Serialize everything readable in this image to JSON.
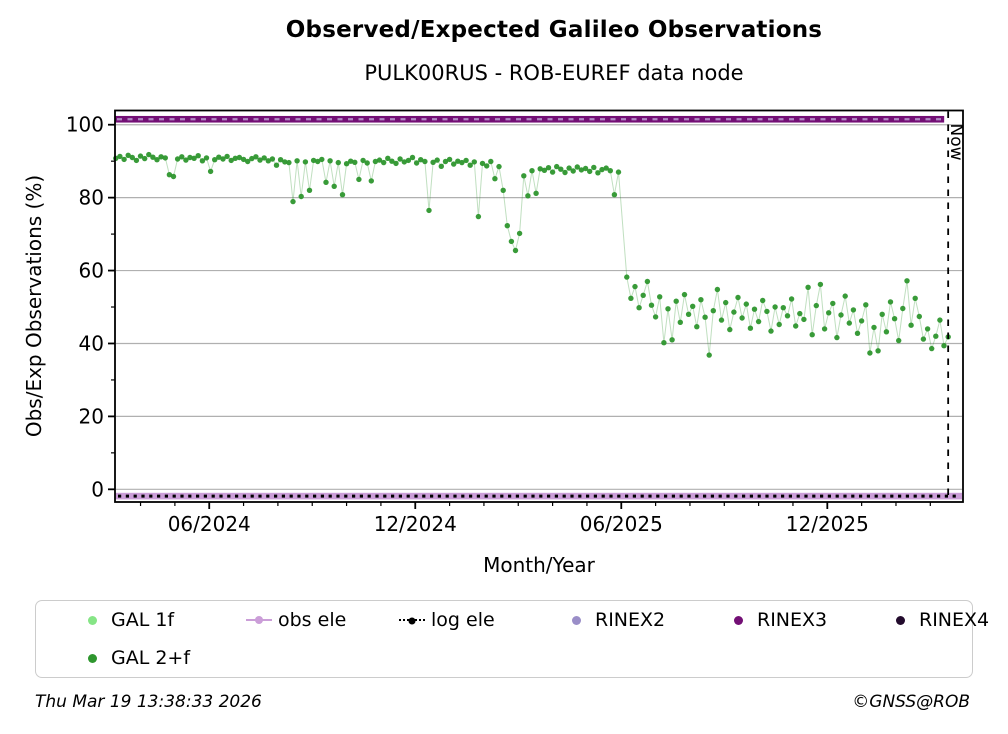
{
  "header": {
    "title": "Observed/Expected Galileo Observations",
    "subtitle": "PULK00RUS - ROB-EUREF data node"
  },
  "footer": {
    "timestamp": "Thu Mar 19 13:38:33 2026",
    "copyright": "©GNSS@ROB"
  },
  "chart_data": {
    "type": "scatter",
    "title": "Observed/Expected Galileo Observations",
    "subtitle": "PULK00RUS - ROB-EUREF data node",
    "xlabel": "Month/Year",
    "ylabel": "Obs/Exp Observations (%)",
    "now_label": "Now",
    "now_x": 2026.21,
    "xlim": [
      2024.188,
      2026.246
    ],
    "ylim": [
      -3.48,
      103.9
    ],
    "grid": "horizontal-gray",
    "legend_position": "below-axes",
    "x_major_ticks": [
      {
        "x": 2024.4167,
        "label": "06/2024"
      },
      {
        "x": 2024.9167,
        "label": "12/2024"
      },
      {
        "x": 2025.4167,
        "label": "06/2025"
      },
      {
        "x": 2025.9167,
        "label": "12/2025"
      }
    ],
    "x_minor_tick_step_months": 1,
    "y_major_ticks": [
      0,
      20,
      40,
      60,
      80,
      100
    ],
    "y_minor_ticks": [
      10,
      30,
      50,
      70,
      90
    ],
    "series": [
      {
        "name": "GAL 1f",
        "color": "#86e586",
        "type": "scatter",
        "visible_in_plot": false,
        "note": "markers not separately visible; hidden behind GAL 2+f / RINEX band"
      },
      {
        "name": "GAL 2+f",
        "color": "#2e962e",
        "line_color_alpha": 0.3,
        "type": "scatter+line",
        "x_unit": "decimal_year",
        "segments": [
          {
            "x_start": 2024.19,
            "x_step": 0.01,
            "values": [
              90.8,
              91.3,
              90.5,
              91.6,
              91.0,
              90.2,
              91.4,
              90.7,
              91.8,
              91.1,
              90.4,
              91.2,
              90.9,
              86.3,
              85.8,
              90.6,
              91.2,
              90.3,
              91.0,
              90.8,
              91.5,
              90.1,
              90.9,
              87.2,
              90.4,
              91.1,
              90.6,
              91.3,
              90.2,
              90.8,
              91.0,
              90.5,
              89.9,
              90.7,
              91.2,
              90.3,
              90.9,
              90.1,
              90.6,
              88.9,
              90.4,
              89.8,
              89.6,
              78.9,
              90.1,
              80.3,
              89.8,
              82.0,
              90.2,
              89.9,
              90.5,
              84.2,
              90.1,
              83.1,
              89.6,
              80.8,
              89.3,
              90.0,
              89.7,
              85.0,
              90.2,
              89.5,
              84.6,
              89.9,
              90.3,
              89.6,
              90.8,
              90.0,
              89.4,
              90.6,
              89.8,
              90.2,
              91.0,
              89.5,
              90.4,
              89.9,
              76.5,
              89.7,
              90.3,
              88.6,
              89.9,
              90.5,
              89.2,
              90.0,
              89.6,
              90.2,
              88.9,
              89.8,
              74.8,
              89.4,
              88.7,
              89.9,
              85.2,
              88.5,
              82.0,
              72.3,
              68.0,
              65.5,
              70.2,
              86.0,
              80.5,
              87.4,
              81.2,
              87.9,
              87.5,
              88.2,
              87.0,
              88.5,
              87.8,
              86.9,
              88.1,
              87.3,
              88.4,
              87.6,
              88.0,
              87.2,
              88.3,
              86.8,
              87.7,
              88.1,
              87.4,
              80.8,
              87.0
            ]
          },
          {
            "x_start": 2025.43,
            "x_step": 0.01,
            "values": [
              58.2,
              52.4,
              55.6,
              49.8,
              53.2,
              57.0,
              50.5,
              47.3,
              52.8,
              40.2,
              49.5,
              41.0,
              51.6,
              45.8,
              53.4,
              48.0,
              50.2,
              44.6,
              52.0,
              47.2,
              36.8,
              49.0,
              54.8,
              46.4,
              51.2,
              43.8,
              48.6,
              52.6,
              47.0,
              50.8,
              44.2,
              49.4,
              46.0,
              51.8,
              48.8,
              43.4,
              50.0,
              45.2,
              49.8,
              47.6,
              52.2,
              44.8,
              48.2,
              46.6,
              55.4,
              42.4,
              50.4,
              56.2,
              44.0,
              48.4,
              51.0,
              41.6,
              47.8,
              53.0,
              45.6,
              49.2,
              42.8,
              46.2,
              50.6,
              37.4,
              44.4,
              38.0,
              48.0,
              43.2,
              51.4,
              46.8,
              40.8,
              49.6,
              57.2,
              45.0,
              52.4,
              47.4,
              41.2,
              44.0,
              38.6,
              42.0,
              46.4,
              39.4,
              41.8
            ]
          }
        ]
      },
      {
        "name": "obs ele",
        "color": "#cb9ed8",
        "type": "thick-line",
        "value": 0,
        "x_range": [
          2024.188,
          2026.246
        ]
      },
      {
        "name": "log ele",
        "color": "#000000",
        "type": "dotted-line",
        "value": 0,
        "x_range": [
          2024.188,
          2026.246
        ]
      },
      {
        "name": "RINEX2",
        "color": "#b089c4",
        "legend_color": "#9a8ec8",
        "type": "dashed-line",
        "value": 101.5,
        "x_range": [
          2024.188,
          2026.21
        ]
      },
      {
        "name": "RINEX3",
        "color": "#730f75",
        "type": "band",
        "value": 101.5,
        "x_range": [
          2024.188,
          2026.21
        ]
      },
      {
        "name": "RINEX4",
        "color": "#230b2d",
        "type": "scatter",
        "value": 101.5,
        "visible_in_plot": false,
        "note": "overlaid by RINEX3 band"
      }
    ]
  },
  "legend": {
    "items": [
      {
        "label": "GAL 1f",
        "marker": "dot",
        "color": "#86e586",
        "row": 0,
        "x": 43
      },
      {
        "label": "obs ele",
        "marker": "line-dot",
        "color": "#cb9ed8",
        "row": 0,
        "x": 210
      },
      {
        "label": "log ele",
        "marker": "dotted-line-dot",
        "color": "#000000",
        "row": 0,
        "x": 363
      },
      {
        "label": "RINEX2",
        "marker": "dot",
        "color": "#9a8ec8",
        "row": 0,
        "x": 527
      },
      {
        "label": "RINEX3",
        "marker": "dot",
        "color": "#730f75",
        "row": 0,
        "x": 689
      },
      {
        "label": "RINEX4",
        "marker": "dot",
        "color": "#230b2d",
        "row": 0,
        "x": 851
      },
      {
        "label": "GAL 2+f",
        "marker": "dot",
        "color": "#2e962e",
        "row": 1,
        "x": 43
      }
    ]
  }
}
